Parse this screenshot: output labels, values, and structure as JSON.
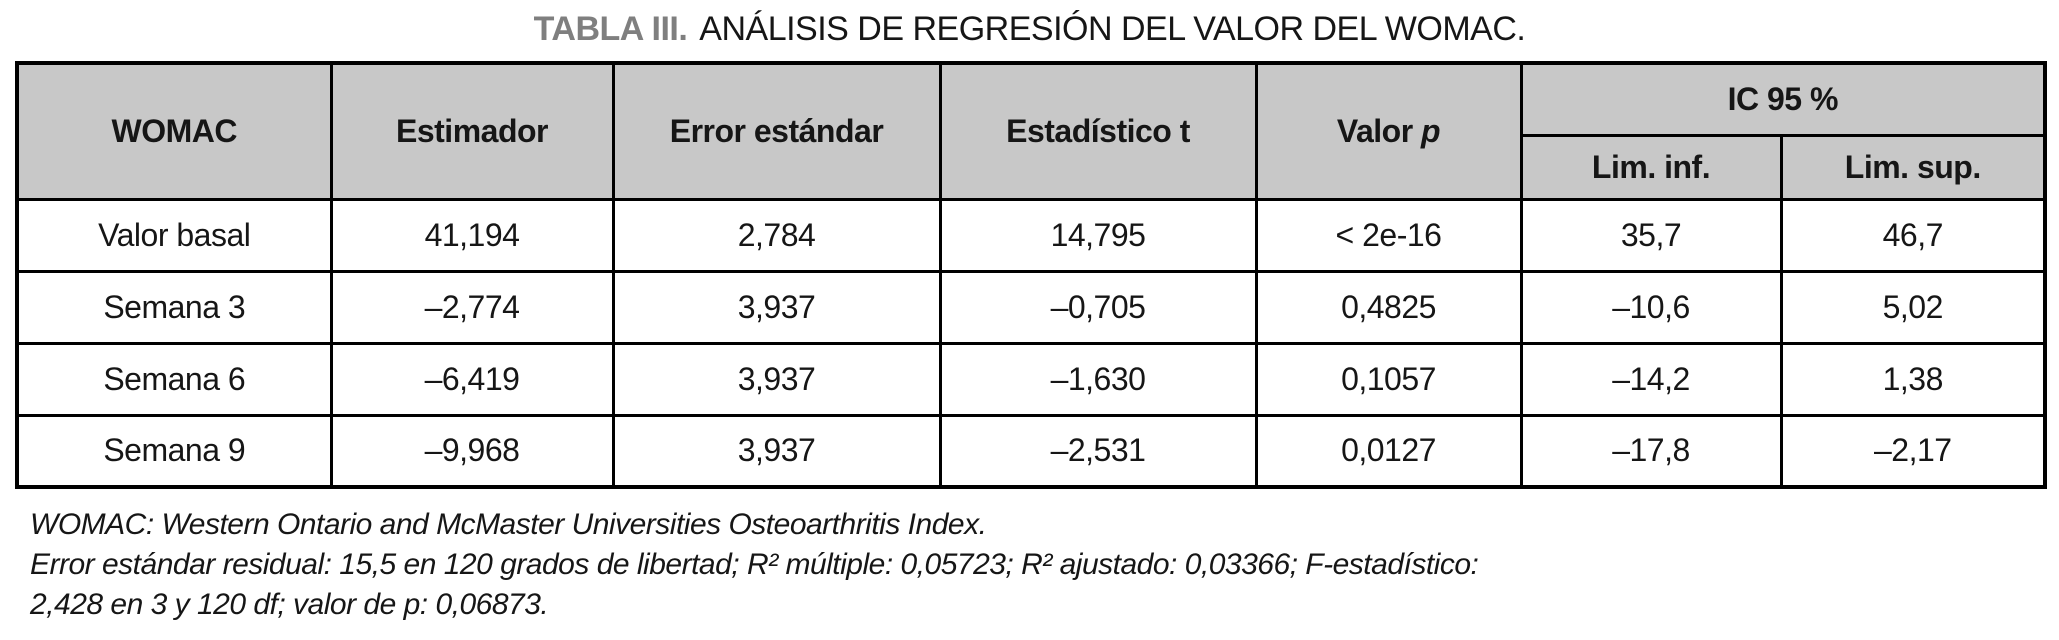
{
  "title": {
    "label": "TABLA III.",
    "text": "ANÁLISIS DE REGRESIÓN DEL VALOR DEL WOMAC."
  },
  "table": {
    "headers": {
      "womac": "WOMAC",
      "estimador": "Estimador",
      "error_estandar": "Error estándar",
      "estadistico_t": "Estadístico t",
      "valor_p_prefix": "Valor",
      "valor_p_italic": "p",
      "ic95": "IC 95 %",
      "lim_inf": "Lim. inf.",
      "lim_sup": "Lim. sup."
    },
    "rows": [
      [
        "Valor basal",
        "41,194",
        "2,784",
        "14,795",
        "< 2e-16",
        "35,7",
        "46,7"
      ],
      [
        "Semana 3",
        "–2,774",
        "3,937",
        "–0,705",
        "0,4825",
        "–10,6",
        "5,02"
      ],
      [
        "Semana 6",
        "–6,419",
        "3,937",
        "–1,630",
        "0,1057",
        "–14,2",
        "1,38"
      ],
      [
        "Semana 9",
        "–9,968",
        "3,937",
        "–2,531",
        "0,0127",
        "–17,8",
        "–2,17"
      ]
    ]
  },
  "footnotes": [
    "WOMAC: Western Ontario and McMaster Universities Osteoarthritis Index.",
    "Error estándar residual: 15,5 en 120 grados de libertad; R² múltiple: 0,05723; R² ajustado: 0,03366; F-estadístico:",
    "2,428 en 3 y 120 df; valor de p: 0,06873."
  ],
  "colors": {
    "header_bg": "#c8c8c8",
    "border": "#000000",
    "title_label": "#7f7f7f",
    "text": "#161616"
  }
}
